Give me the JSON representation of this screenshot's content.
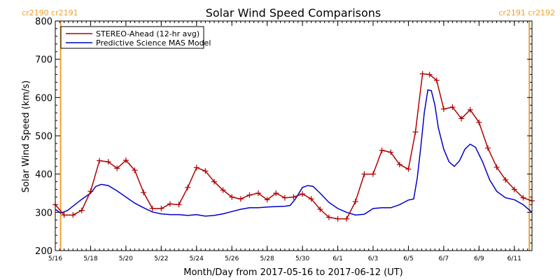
{
  "chart_data": {
    "type": "line",
    "title": "Solar Wind Speed Comparisons",
    "xlabel": "Month/Day from 2017-05-16 to 2017-06-12 (UT)",
    "ylabel": "Solar Wind Speed (km/s)",
    "xlim": [
      0,
      27
    ],
    "ylim": [
      200,
      800
    ],
    "y_ticks": [
      200,
      300,
      400,
      500,
      600,
      700,
      800
    ],
    "x_ticks": [
      {
        "x": 0,
        "label": "5/16"
      },
      {
        "x": 2,
        "label": "5/18"
      },
      {
        "x": 4,
        "label": "5/20"
      },
      {
        "x": 6,
        "label": "5/22"
      },
      {
        "x": 8,
        "label": "5/24"
      },
      {
        "x": 10,
        "label": "5/26"
      },
      {
        "x": 12,
        "label": "5/28"
      },
      {
        "x": 14,
        "label": "5/30"
      },
      {
        "x": 16,
        "label": "6/1"
      },
      {
        "x": 18,
        "label": "6/3"
      },
      {
        "x": 20,
        "label": "6/5"
      },
      {
        "x": 22,
        "label": "6/7"
      },
      {
        "x": 24,
        "label": "6/9"
      },
      {
        "x": 26,
        "label": "6/11"
      }
    ],
    "legend_position": "top-left",
    "carrington_markers": [
      {
        "x": 0.3,
        "label_top_left": "cr2190 cr2191"
      },
      {
        "x": 26.85,
        "label_top_right": "cr2191 cr2192"
      }
    ],
    "marker_color": "#f0a030",
    "series": [
      {
        "name": "STEREO-Ahead (12-hr avg)",
        "color": "#b00000",
        "marker": "plus",
        "x": [
          0.0,
          0.5,
          1.0,
          1.5,
          2.0,
          2.5,
          3.0,
          3.5,
          4.0,
          4.5,
          5.0,
          5.5,
          6.0,
          6.5,
          7.0,
          7.5,
          8.0,
          8.5,
          9.0,
          9.5,
          10.0,
          10.5,
          11.0,
          11.5,
          12.0,
          12.5,
          13.0,
          13.5,
          14.0,
          14.5,
          15.0,
          15.5,
          16.0,
          16.5,
          17.0,
          17.5,
          18.0,
          18.5,
          19.0,
          19.5,
          20.0,
          20.4,
          20.8,
          21.2,
          21.6,
          22.0,
          22.5,
          23.0,
          23.5,
          24.0,
          24.5,
          25.0,
          25.5,
          26.0,
          26.5,
          27.0
        ],
        "y": [
          320,
          293,
          293,
          305,
          355,
          435,
          432,
          415,
          436,
          410,
          352,
          310,
          310,
          322,
          320,
          365,
          417,
          408,
          380,
          358,
          340,
          335,
          345,
          350,
          333,
          350,
          338,
          340,
          348,
          335,
          308,
          287,
          283,
          283,
          328,
          400,
          400,
          462,
          457,
          425,
          413,
          510,
          662,
          660,
          645,
          570,
          575,
          545,
          568,
          535,
          468,
          418,
          385,
          360,
          338,
          330
        ]
      },
      {
        "name": "Predictive Science MAS Model",
        "color": "#0000cc",
        "marker": "none",
        "x": [
          0.0,
          0.3,
          0.7,
          1.0,
          1.5,
          2.0,
          2.3,
          2.6,
          3.0,
          3.5,
          4.0,
          4.5,
          5.0,
          5.5,
          6.0,
          6.5,
          7.0,
          7.5,
          8.0,
          8.5,
          9.0,
          9.5,
          10.0,
          10.5,
          11.0,
          11.5,
          12.0,
          12.5,
          13.0,
          13.3,
          13.6,
          14.0,
          14.3,
          14.6,
          15.0,
          15.5,
          16.0,
          16.5,
          17.0,
          17.5,
          18.0,
          18.5,
          19.0,
          19.5,
          20.0,
          20.3,
          20.5,
          20.7,
          20.9,
          21.1,
          21.3,
          21.5,
          21.7,
          22.0,
          22.3,
          22.6,
          22.9,
          23.2,
          23.5,
          23.8,
          24.2,
          24.6,
          25.0,
          25.5,
          26.0,
          26.5,
          27.0
        ],
        "y": [
          308,
          298,
          305,
          316,
          334,
          350,
          368,
          373,
          370,
          356,
          340,
          324,
          312,
          301,
          296,
          294,
          294,
          292,
          294,
          290,
          292,
          296,
          302,
          308,
          312,
          312,
          314,
          315,
          316,
          318,
          335,
          365,
          370,
          368,
          350,
          326,
          310,
          300,
          293,
          295,
          310,
          312,
          312,
          320,
          332,
          335,
          390,
          470,
          560,
          620,
          618,
          580,
          520,
          465,
          432,
          420,
          435,
          465,
          478,
          470,
          432,
          385,
          355,
          338,
          333,
          320,
          300
        ]
      }
    ]
  }
}
